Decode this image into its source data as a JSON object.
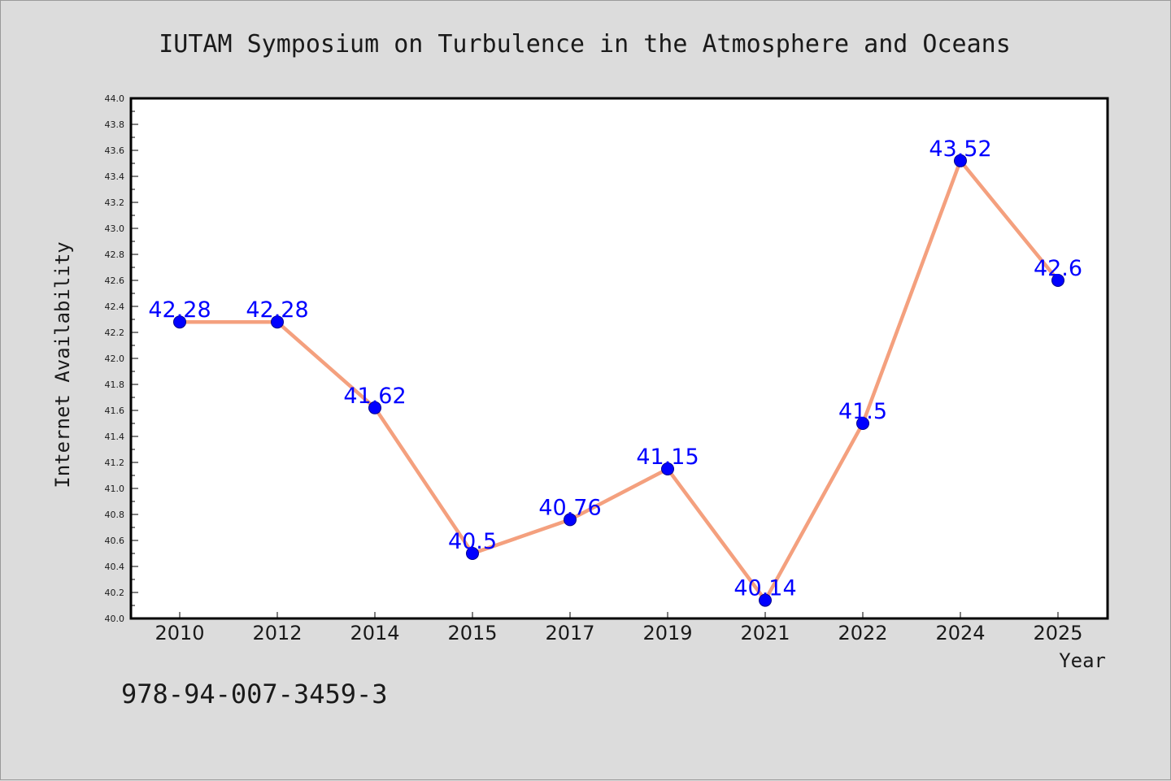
{
  "chart_data": {
    "type": "line",
    "title": "IUTAM Symposium on Turbulence in the Atmosphere and Oceans",
    "xlabel": "Year",
    "ylabel": "Internet Availability",
    "categories": [
      "2010",
      "2012",
      "2014",
      "2015",
      "2017",
      "2019",
      "2021",
      "2022",
      "2024",
      "2025"
    ],
    "values": [
      42.28,
      42.28,
      41.62,
      40.5,
      40.76,
      41.15,
      40.14,
      41.5,
      43.52,
      42.6
    ],
    "data_labels": [
      "42.28",
      "42.28",
      "41.62",
      "40.5",
      "40.76",
      "41.15",
      "40.14",
      "41.5",
      "43.52",
      "42.6"
    ],
    "ylim": [
      40.0,
      44.0
    ],
    "yticks": [
      "40.0",
      "40.2",
      "40.4",
      "40.6",
      "40.8",
      "41.0",
      "41.2",
      "41.4",
      "41.6",
      "41.8",
      "42.0",
      "42.2",
      "42.4",
      "42.6",
      "42.8",
      "43.0",
      "43.2",
      "43.4",
      "43.6",
      "43.8",
      "44.0"
    ],
    "grid": false,
    "legend": "none",
    "line_color": "#f4a07e",
    "marker_color": "#0000ff",
    "label_color": "#0000ff",
    "background_color": "#dcdcdc",
    "plot_background": "#ffffff"
  },
  "footer": {
    "isbn": "978-94-007-3459-3"
  }
}
